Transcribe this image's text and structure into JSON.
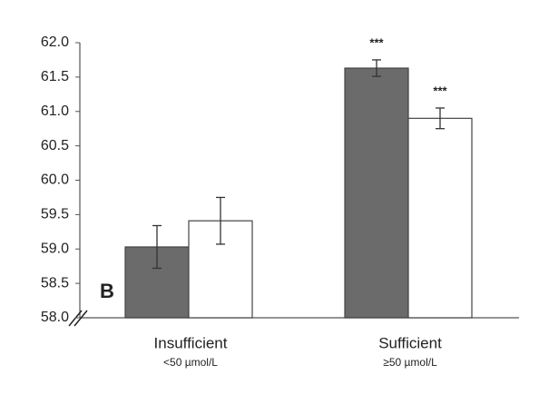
{
  "chart_data": {
    "type": "bar",
    "panel_label": "B",
    "categories": [
      "Insufficient",
      "Sufficient"
    ],
    "category_sublabels": [
      "<50 µmol/L",
      "≥50 µmol/L"
    ],
    "series": [
      {
        "color": "#6b6b6b",
        "values": [
          59.03,
          61.63
        ],
        "errors": [
          0.31,
          0.12
        ],
        "significance": [
          null,
          "***"
        ]
      },
      {
        "color": "#ffffff",
        "values": [
          59.41,
          60.9
        ],
        "errors": [
          0.34,
          0.15
        ],
        "significance": [
          null,
          "***"
        ]
      }
    ],
    "ylim": [
      58,
      62
    ],
    "yticks": [
      {
        "value": 58,
        "label": "58.0"
      },
      58.5,
      {
        "value": 59,
        "label": "59.0"
      },
      59.5,
      {
        "value": 60,
        "label": "60.0"
      },
      60.5,
      {
        "value": 61,
        "label": "61.0"
      },
      61.5,
      {
        "value": 62,
        "label": "62.0"
      }
    ],
    "grid": false
  }
}
